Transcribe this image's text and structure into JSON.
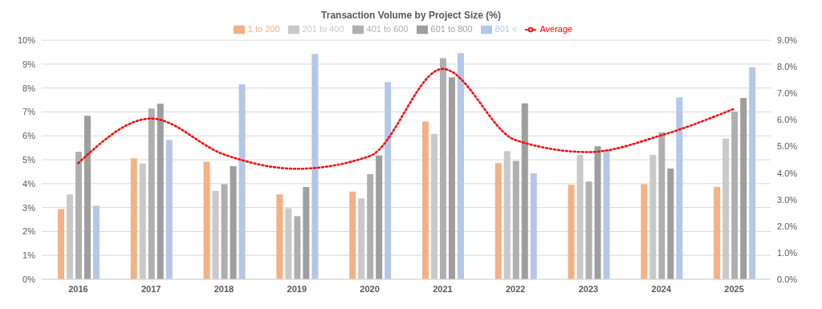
{
  "chart_data": {
    "type": "bar",
    "title": "Transaction Volume by Project Size (%)",
    "categories": [
      "2016",
      "2017",
      "2018",
      "2019",
      "2020",
      "2021",
      "2022",
      "2023",
      "2024",
      "2025"
    ],
    "series": [
      {
        "name": "1 to 200",
        "color": "#f4b183",
        "values": [
          2.94,
          5.06,
          4.92,
          3.55,
          3.67,
          6.6,
          4.86,
          3.95,
          3.98,
          3.86
        ]
      },
      {
        "name": "201 to 400",
        "color": "#c9c9c9",
        "values": [
          3.55,
          4.84,
          3.69,
          2.97,
          3.38,
          6.08,
          5.36,
          5.21,
          5.2,
          5.89
        ]
      },
      {
        "name": "401 to 600",
        "color": "#afafaf",
        "values": [
          5.34,
          7.14,
          3.98,
          2.64,
          4.4,
          9.25,
          4.95,
          4.09,
          6.15,
          7.01
        ]
      },
      {
        "name": "601 to 800",
        "color": "#9e9e9e",
        "values": [
          6.84,
          7.34,
          4.73,
          3.86,
          5.18,
          8.45,
          7.36,
          5.56,
          4.63,
          7.59
        ]
      },
      {
        "name": "801 <",
        "color": "#b4c7e7",
        "values": [
          3.08,
          5.83,
          8.16,
          9.42,
          8.25,
          9.46,
          4.43,
          5.41,
          7.6,
          8.86
        ]
      },
      {
        "name": "Average",
        "type": "line",
        "axis": "y2",
        "color": "#ff0000",
        "line_style": "dotted",
        "marker": "none",
        "values": [
          4.37,
          6.05,
          4.7,
          4.16,
          4.64,
          7.92,
          5.24,
          4.79,
          5.42,
          6.42
        ]
      }
    ],
    "ylim": [
      0,
      10
    ],
    "yticks": [
      {
        "value": 0,
        "label": "0%"
      },
      {
        "value": 1,
        "label": "1%"
      },
      {
        "value": 2,
        "label": "2%"
      },
      {
        "value": 3,
        "label": "3%"
      },
      {
        "value": 4,
        "label": "4%"
      },
      {
        "value": 5,
        "label": "5%"
      },
      {
        "value": 6,
        "label": "6%"
      },
      {
        "value": 7,
        "label": "7%"
      },
      {
        "value": 8,
        "label": "8%"
      },
      {
        "value": 9,
        "label": "9%"
      },
      {
        "value": 10,
        "label": "10%"
      }
    ],
    "y2lim": [
      0,
      9
    ],
    "y2ticks": [
      {
        "value": 0,
        "label": "0.0%"
      },
      {
        "value": 1,
        "label": "1.0%"
      },
      {
        "value": 2,
        "label": "2.0%"
      },
      {
        "value": 3,
        "label": "3.0%"
      },
      {
        "value": 4,
        "label": "4.0%"
      },
      {
        "value": 5,
        "label": "5.0%"
      },
      {
        "value": 6,
        "label": "6.0%"
      },
      {
        "value": 7,
        "label": "7.0%"
      },
      {
        "value": 8,
        "label": "8.0%"
      },
      {
        "value": 9,
        "label": "9.0%"
      }
    ],
    "grid": "y",
    "legend": "top"
  }
}
